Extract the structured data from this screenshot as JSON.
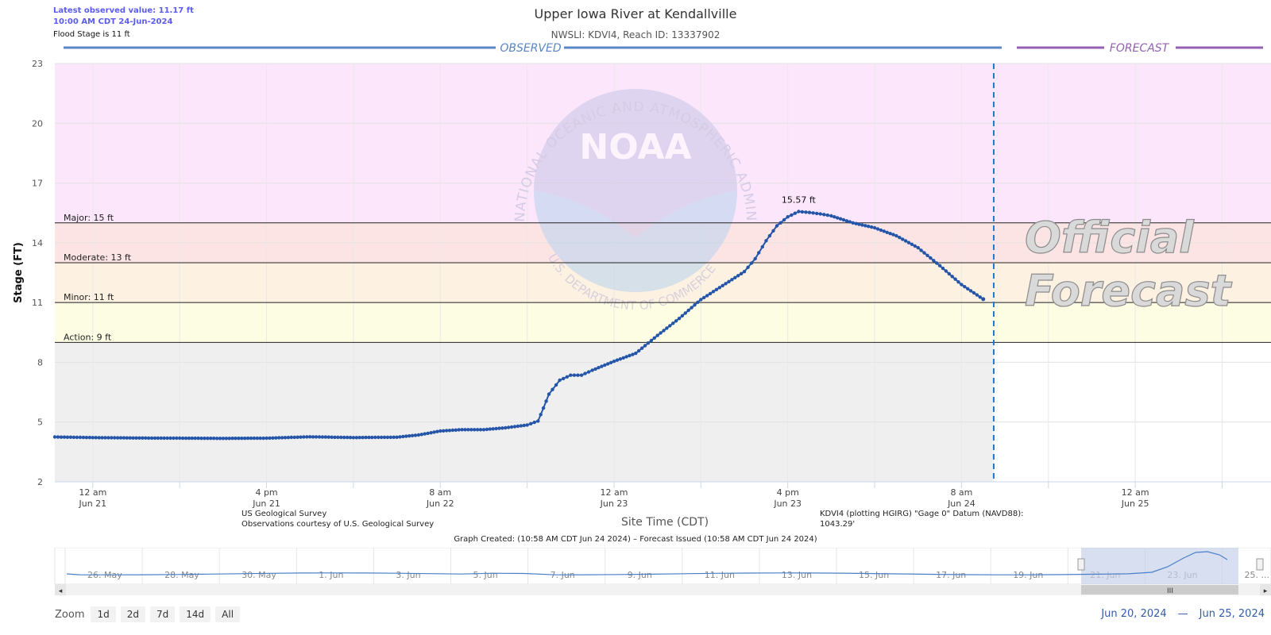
{
  "header": {
    "latest_observed": "Latest observed value: 11.17 ft",
    "latest_time": "10:00 AM CDT 24-Jun-2024",
    "flood_stage_note": "Flood Stage is 11 ft",
    "title": "Upper Iowa River at Kendallville",
    "subtitle": "NWSLI: KDVI4, Reach ID: 13337902"
  },
  "footer": {
    "credit_line1": "US Geological Survey",
    "credit_line2": "Observations courtesy of U.S. Geological Survey",
    "datum_line1": "KDVI4 (plotting HGIRG) \"Gage 0\" Datum (NAVD88):",
    "datum_line2": "1043.29'",
    "graph_created": "Graph Created: (10:58 AM CDT Jun 24 2024) – Forecast Issued (10:58 AM CDT Jun 24 2024)"
  },
  "watermark": {
    "forecast_line1": "Official",
    "forecast_line2": "Forecast",
    "noaa_text": "NOAA",
    "noaa_ring_top": "NATIONAL OCEANIC AND ATMOSPHERIC ADMINISTRATION",
    "noaa_ring_bottom": "U.S. DEPARTMENT OF COMMERCE"
  },
  "navigator": {
    "labels": [
      "26. May",
      "28. May",
      "30. May",
      "1. Jun",
      "3. Jun",
      "5. Jun",
      "7. Jun",
      "9. Jun",
      "11. Jun",
      "13. Jun",
      "15. Jun",
      "17. Jun",
      "19. Jun",
      "21. Jun",
      "23. Jun",
      "25. ..."
    ]
  },
  "zoom": {
    "label": "Zoom",
    "buttons": [
      "1d",
      "2d",
      "7d",
      "14d",
      "All"
    ]
  },
  "range": {
    "from": "Jun 20, 2024",
    "sep": "—",
    "to": "Jun 25, 2024"
  },
  "colors": {
    "major_band": "#fbe6fb",
    "moderate_band": "#fde4e4",
    "minor_band": "#fdf1e2",
    "action_band": "#fdfde4",
    "below_band": "#efefef",
    "series": "#2455a8",
    "observed_header": "#5b86c5",
    "forecast_header": "#9461b3",
    "issued_line": "#1f7ac9"
  },
  "chart_data": {
    "type": "line",
    "title": "Upper Iowa River at Kendallville",
    "subtitle": "NWSLI: KDVI4, Reach ID: 13337902",
    "xlabel": "Site Time (CDT)",
    "ylabel": "Stage (FT)",
    "ylim": [
      2,
      23
    ],
    "y_ticks": [
      2,
      5,
      8,
      11,
      14,
      17,
      20,
      23
    ],
    "xlim": [
      "2024-06-20T20:30",
      "2024-06-25T12:30"
    ],
    "x_ticks": [
      {
        "label": "12 am",
        "sub": "Jun 21"
      },
      {
        "label": "4 pm",
        "sub": "Jun 21"
      },
      {
        "label": "8 am",
        "sub": "Jun 22"
      },
      {
        "label": "12 am",
        "sub": "Jun 23"
      },
      {
        "label": "4 pm",
        "sub": "Jun 23"
      },
      {
        "label": "8 am",
        "sub": "Jun 24"
      },
      {
        "label": "12 am",
        "sub": "Jun 25"
      }
    ],
    "thresholds": [
      {
        "name": "Major",
        "label": "Major: 15 ft",
        "value": 15
      },
      {
        "name": "Moderate",
        "label": "Moderate: 13 ft",
        "value": 13
      },
      {
        "name": "Minor",
        "label": "Minor: 11 ft",
        "value": 11
      },
      {
        "name": "Action",
        "label": "Action: 9 ft",
        "value": 9
      }
    ],
    "section_labels": {
      "observed": "OBSERVED",
      "forecast": "FORECAST"
    },
    "forecast_issued": "2024-06-24T10:58",
    "peak_label": "15.57 ft",
    "peak": {
      "x": "2024-06-23T17:00",
      "y": 15.57
    },
    "series": [
      {
        "points": [
          [
            "2024-06-20T20:30",
            4.25
          ],
          [
            "2024-06-21T00:00",
            4.22
          ],
          [
            "2024-06-21T04:00",
            4.2
          ],
          [
            "2024-06-21T08:00",
            4.19
          ],
          [
            "2024-06-21T12:00",
            4.18
          ],
          [
            "2024-06-21T16:00",
            4.19
          ],
          [
            "2024-06-21T20:00",
            4.26
          ],
          [
            "2024-06-22T00:00",
            4.22
          ],
          [
            "2024-06-22T04:00",
            4.24
          ],
          [
            "2024-06-22T06:00",
            4.35
          ],
          [
            "2024-06-22T08:00",
            4.55
          ],
          [
            "2024-06-22T10:00",
            4.62
          ],
          [
            "2024-06-22T12:00",
            4.62
          ],
          [
            "2024-06-22T14:00",
            4.71
          ],
          [
            "2024-06-22T16:00",
            4.85
          ],
          [
            "2024-06-22T17:00",
            5.05
          ],
          [
            "2024-06-22T17:30",
            5.7
          ],
          [
            "2024-06-22T18:00",
            6.4
          ],
          [
            "2024-06-22T19:00",
            7.1
          ],
          [
            "2024-06-22T20:00",
            7.35
          ],
          [
            "2024-06-22T21:00",
            7.35
          ],
          [
            "2024-06-22T22:00",
            7.6
          ],
          [
            "2024-06-23T00:00",
            8.05
          ],
          [
            "2024-06-23T02:00",
            8.45
          ],
          [
            "2024-06-23T04:00",
            9.35
          ],
          [
            "2024-06-23T06:00",
            10.2
          ],
          [
            "2024-06-23T08:00",
            11.15
          ],
          [
            "2024-06-23T10:00",
            11.85
          ],
          [
            "2024-06-23T12:00",
            12.55
          ],
          [
            "2024-06-23T13:00",
            13.2
          ],
          [
            "2024-06-23T14:00",
            14.1
          ],
          [
            "2024-06-23T15:00",
            14.85
          ],
          [
            "2024-06-23T16:00",
            15.3
          ],
          [
            "2024-06-23T17:00",
            15.57
          ],
          [
            "2024-06-23T18:00",
            15.52
          ],
          [
            "2024-06-23T19:00",
            15.45
          ],
          [
            "2024-06-23T20:00",
            15.35
          ],
          [
            "2024-06-23T22:00",
            15.0
          ],
          [
            "2024-06-24T00:00",
            14.75
          ],
          [
            "2024-06-24T02:00",
            14.35
          ],
          [
            "2024-06-24T04:00",
            13.75
          ],
          [
            "2024-06-24T06:00",
            12.85
          ],
          [
            "2024-06-24T08:00",
            11.9
          ],
          [
            "2024-06-24T10:00",
            11.17
          ]
        ]
      }
    ]
  }
}
